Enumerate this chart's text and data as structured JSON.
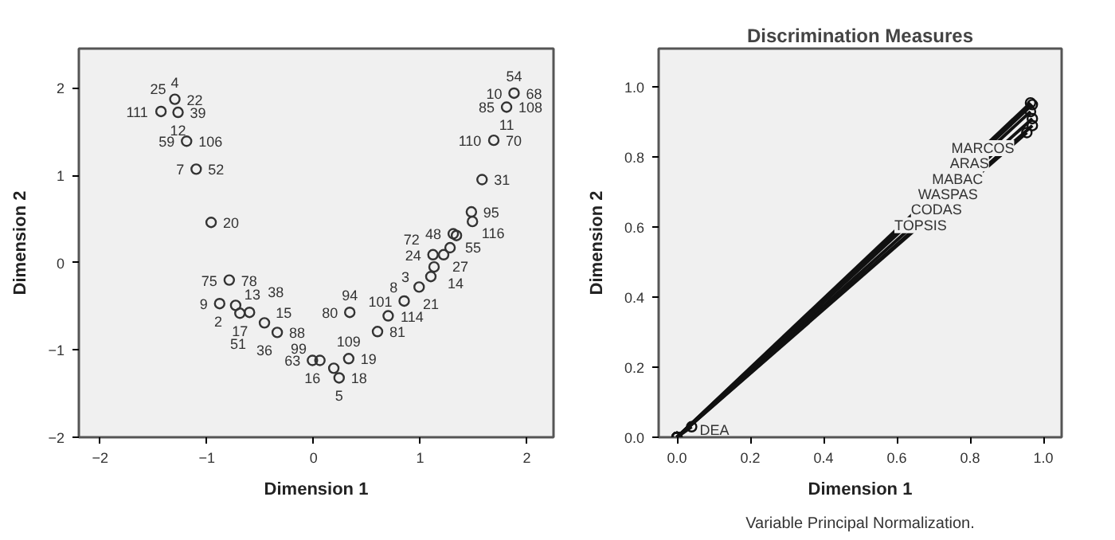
{
  "chart_data": [
    {
      "type": "scatter",
      "xlabel": "Dimension 1",
      "ylabel": "Dimension 2",
      "xlim": [
        -2.2,
        2.25
      ],
      "ylim": [
        -2,
        2.45
      ],
      "xticks": [
        -2,
        -1,
        0,
        1,
        2
      ],
      "yticks": [
        -2,
        -1,
        0,
        1,
        2
      ],
      "grid": false,
      "marker": "circle",
      "series": [
        {
          "color": "#333333",
          "x": [
            -1.43,
            -1.3,
            -1.27,
            -1.19,
            -1.1,
            -0.96,
            1.88,
            1.81,
            1.69,
            1.58,
            1.48,
            1.49,
            1.31,
            1.34,
            1.28,
            1.22,
            1.12,
            1.13,
            1.1,
            0.99,
            0.85,
            0.7,
            0.6,
            0.34,
            0.33,
            0.19,
            0.24,
            -0.79,
            -0.88,
            -0.73,
            -0.69,
            -0.6,
            -0.46,
            -0.34,
            -0.01,
            0.06
          ],
          "values": [
            1.73,
            1.87,
            1.72,
            1.39,
            1.07,
            0.46,
            1.94,
            1.78,
            1.4,
            0.95,
            0.58,
            0.47,
            0.33,
            0.31,
            0.17,
            0.09,
            0.09,
            -0.05,
            -0.16,
            -0.28,
            -0.44,
            -0.61,
            -0.79,
            -0.57,
            -1.1,
            -1.21,
            -1.32,
            -0.2,
            -0.47,
            -0.49,
            -0.58,
            -0.57,
            -0.69,
            -0.8,
            -1.12,
            -1.12
          ]
        }
      ],
      "annotations": [
        {
          "text": "111",
          "x": -1.43,
          "y": 1.73
        },
        {
          "text": "22",
          "x": -1.3,
          "y": 1.87
        },
        {
          "text": "4",
          "x": -1.3,
          "y": 1.87
        },
        {
          "text": "25",
          "x": -1.3,
          "y": 1.87
        },
        {
          "text": "39",
          "x": -1.27,
          "y": 1.72
        },
        {
          "text": "12",
          "x": -1.27,
          "y": 1.72
        },
        {
          "text": "106",
          "x": -1.19,
          "y": 1.39
        },
        {
          "text": "59",
          "x": -1.19,
          "y": 1.39
        },
        {
          "text": "52",
          "x": -1.1,
          "y": 1.07
        },
        {
          "text": "7",
          "x": -1.1,
          "y": 1.07
        },
        {
          "text": "20",
          "x": -0.96,
          "y": 0.46
        },
        {
          "text": "68",
          "x": 1.88,
          "y": 1.94
        },
        {
          "text": "10",
          "x": 1.88,
          "y": 1.94
        },
        {
          "text": "54",
          "x": 1.88,
          "y": 1.94
        },
        {
          "text": "108",
          "x": 1.81,
          "y": 1.78
        },
        {
          "text": "85",
          "x": 1.81,
          "y": 1.78
        },
        {
          "text": "11",
          "x": 1.81,
          "y": 1.78
        },
        {
          "text": "70",
          "x": 1.69,
          "y": 1.4
        },
        {
          "text": "110",
          "x": 1.69,
          "y": 1.4
        },
        {
          "text": "31",
          "x": 1.58,
          "y": 0.95
        },
        {
          "text": "95",
          "x": 1.48,
          "y": 0.58
        },
        {
          "text": "116",
          "x": 1.49,
          "y": 0.47
        },
        {
          "text": "48",
          "x": 1.31,
          "y": 0.33
        },
        {
          "text": "55",
          "x": 1.34,
          "y": 0.31
        },
        {
          "text": "24",
          "x": 1.12,
          "y": 0.09
        },
        {
          "text": "72",
          "x": 1.12,
          "y": 0.09
        },
        {
          "text": "27",
          "x": 1.22,
          "y": 0.09
        },
        {
          "text": "14",
          "x": 1.13,
          "y": -0.05
        },
        {
          "text": "3",
          "x": 1.1,
          "y": -0.16
        },
        {
          "text": "21",
          "x": 1.1,
          "y": -0.16
        },
        {
          "text": "8",
          "x": 0.99,
          "y": -0.28
        },
        {
          "text": "101",
          "x": 0.85,
          "y": -0.44
        },
        {
          "text": "114",
          "x": 0.7,
          "y": -0.61
        },
        {
          "text": "81",
          "x": 0.6,
          "y": -0.79
        },
        {
          "text": "80",
          "x": 0.34,
          "y": -0.57
        },
        {
          "text": "94",
          "x": 0.34,
          "y": -0.57
        },
        {
          "text": "19",
          "x": 0.33,
          "y": -1.1
        },
        {
          "text": "109",
          "x": 0.33,
          "y": -1.1
        },
        {
          "text": "18",
          "x": 0.24,
          "y": -1.32
        },
        {
          "text": "5",
          "x": 0.24,
          "y": -1.32
        },
        {
          "text": "78",
          "x": -0.79,
          "y": -0.2
        },
        {
          "text": "75",
          "x": -0.79,
          "y": -0.2
        },
        {
          "text": "9",
          "x": -0.88,
          "y": -0.47
        },
        {
          "text": "13",
          "x": -0.73,
          "y": -0.49
        },
        {
          "text": "2",
          "x": -0.73,
          "y": -0.49
        },
        {
          "text": "17",
          "x": -0.69,
          "y": -0.58
        },
        {
          "text": "38",
          "x": -0.6,
          "y": -0.57
        },
        {
          "text": "15",
          "x": -0.6,
          "y": -0.57
        },
        {
          "text": "36",
          "x": -0.46,
          "y": -0.69
        },
        {
          "text": "51",
          "x": -0.46,
          "y": -0.69
        },
        {
          "text": "88",
          "x": -0.34,
          "y": -0.8
        },
        {
          "text": "99",
          "x": -0.34,
          "y": -0.8
        },
        {
          "text": "63",
          "x": -0.01,
          "y": -1.12
        },
        {
          "text": "16",
          "x": -0.01,
          "y": -1.12
        }
      ]
    },
    {
      "type": "line",
      "title": "Discrimination Measures",
      "xlabel": "Dimension 1",
      "ylabel": "Dimension 2",
      "xlim": [
        -0.05,
        1.05
      ],
      "ylim": [
        0,
        1.11
      ],
      "xticks": [
        {
          "value": 0,
          "label": "0.0"
        },
        {
          "value": 0.2,
          "label": "0.2"
        },
        {
          "value": 0.4,
          "label": "0.4"
        },
        {
          "value": 0.6,
          "label": "0.6"
        },
        {
          "value": 0.8,
          "label": "0.8"
        },
        {
          "value": 1,
          "label": "1.0"
        }
      ],
      "yticks": [
        {
          "value": 0,
          "label": "0.0"
        },
        {
          "value": 0.2,
          "label": "0.2"
        },
        {
          "value": 0.4,
          "label": "0.4"
        },
        {
          "value": 0.6,
          "label": "0.6"
        },
        {
          "value": 0.8,
          "label": "0.8"
        },
        {
          "value": 1,
          "label": "1.0"
        }
      ],
      "grid": false,
      "marker": "circle",
      "line_style": "solid",
      "series": [
        {
          "name": "MARCOS",
          "color": "#111111",
          "x": [
            0,
            0.965
          ],
          "values": [
            0,
            0.955
          ]
        },
        {
          "name": "ARAS",
          "color": "#111111",
          "x": [
            0,
            0.97
          ],
          "values": [
            0,
            0.95
          ]
        },
        {
          "name": "MABAC",
          "color": "#111111",
          "x": [
            0,
            0.965
          ],
          "values": [
            0,
            0.93
          ]
        },
        {
          "name": "WASPAS",
          "color": "#111111",
          "x": [
            0,
            0.97
          ],
          "values": [
            0,
            0.91
          ]
        },
        {
          "name": "CODAS",
          "color": "#111111",
          "x": [
            0,
            0.97
          ],
          "values": [
            0,
            0.89
          ]
        },
        {
          "name": "TOPSIS",
          "color": "#111111",
          "x": [
            0,
            0.955
          ],
          "values": [
            0,
            0.87
          ]
        },
        {
          "name": "DEA",
          "color": "#111111",
          "x": [
            0,
            0.04
          ],
          "values": [
            0,
            0.03
          ]
        }
      ],
      "annotations": [
        "Variable Principal Normalization."
      ]
    }
  ]
}
